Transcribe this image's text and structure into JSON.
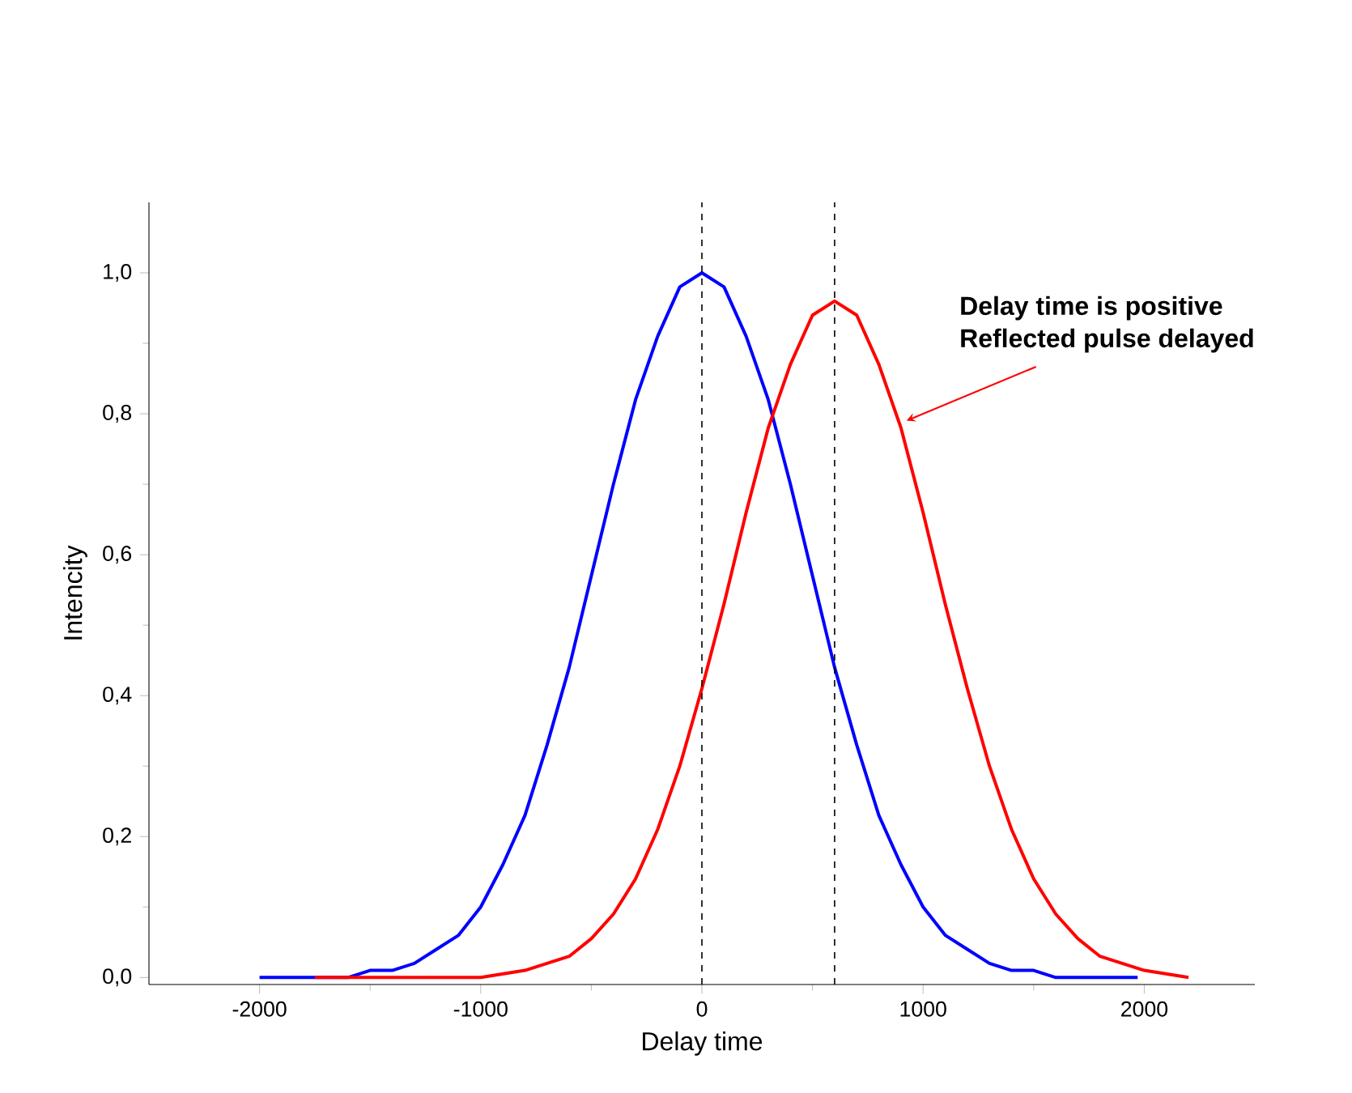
{
  "chart_data": {
    "type": "line",
    "xlabel": "Delay time",
    "ylabel": "Intencity",
    "xlim": [
      -2500,
      2500
    ],
    "ylim": [
      -0.01,
      1.1
    ],
    "xticks": [
      -2000,
      -1000,
      0,
      1000,
      2000
    ],
    "yticks": [
      {
        "value": 0,
        "label": "0,0"
      },
      {
        "value": 0.2,
        "label": "0,2"
      },
      {
        "value": 0.4,
        "label": "0,4"
      },
      {
        "value": 0.6,
        "label": "0,6"
      },
      {
        "value": 0.8,
        "label": "0,8"
      },
      {
        "value": 1.0,
        "label": "1,0"
      }
    ],
    "marker": "none",
    "line_style": "solid",
    "series": [
      {
        "color": "#0000ff",
        "x": [
          -2000,
          -1800,
          -1600,
          -1500,
          -1400,
          -1300,
          -1200,
          -1100,
          -1000,
          -900,
          -800,
          -700,
          -600,
          -500,
          -400,
          -300,
          -200,
          -100,
          0,
          100,
          200,
          300,
          400,
          500,
          600,
          700,
          800,
          900,
          1000,
          1100,
          1200,
          1300,
          1400,
          1500,
          1600,
          1800,
          1970
        ],
        "values": [
          0,
          0,
          0,
          0.01,
          0.01,
          0.02,
          0.04,
          0.06,
          0.1,
          0.16,
          0.23,
          0.33,
          0.44,
          0.57,
          0.7,
          0.82,
          0.91,
          0.98,
          1.0,
          0.98,
          0.91,
          0.82,
          0.7,
          0.57,
          0.44,
          0.33,
          0.23,
          0.16,
          0.1,
          0.06,
          0.04,
          0.02,
          0.01,
          0.01,
          0,
          0,
          0
        ]
      },
      {
        "color": "#ff0000",
        "x": [
          -1750,
          -1400,
          -1000,
          -800,
          -700,
          -600,
          -500,
          -400,
          -300,
          -200,
          -100,
          0,
          100,
          200,
          300,
          400,
          500,
          600,
          700,
          800,
          900,
          1000,
          1100,
          1200,
          1300,
          1400,
          1500,
          1600,
          1700,
          1800,
          1900,
          2000,
          2200
        ],
        "values": [
          0,
          0,
          0,
          0.01,
          0.02,
          0.03,
          0.055,
          0.09,
          0.14,
          0.21,
          0.3,
          0.41,
          0.53,
          0.66,
          0.78,
          0.87,
          0.94,
          0.96,
          0.94,
          0.87,
          0.78,
          0.66,
          0.53,
          0.41,
          0.3,
          0.21,
          0.14,
          0.09,
          0.055,
          0.03,
          0.02,
          0.01,
          0
        ]
      }
    ],
    "ref_lines": [
      {
        "axis": "x",
        "value": 0,
        "color": "#000000",
        "line_style": "dashed"
      },
      {
        "axis": "x",
        "value": 600,
        "color": "#000000",
        "line_style": "dashed"
      }
    ],
    "annotations": [
      "Delay time is positive",
      "Reflected pulse delayed"
    ]
  }
}
